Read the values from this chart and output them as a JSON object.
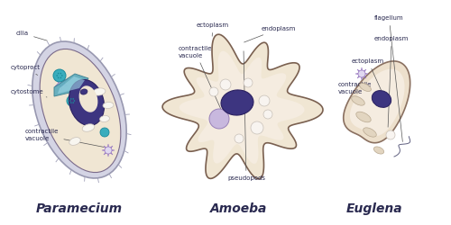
{
  "background_color": "#ffffff",
  "body_fill": "#f0e6d3",
  "body_edge": "#7a6a8a",
  "outer_fill": "#d8d8e8",
  "outer_edge": "#a0a0b8",
  "nucleus_fill": "#3d3580",
  "nucleus_edge": "#2a2060",
  "vacuole_purple_fill": "#b8a8d8",
  "vacuole_purple_edge": "#8878b8",
  "teal_fill": "#3aadbd",
  "teal_edge": "#1a8a9a",
  "star_fill": "#c8b8e0",
  "star_edge": "#9880c0",
  "white_vac_fill": "#f8f6f0",
  "white_vac_edge": "#c8c0b8",
  "cytostome_fill": "#5aabbd",
  "cytostome_edge": "#3a8a9a",
  "label_color": "#2a2a50",
  "names": [
    "Paramecium",
    "Amoeba",
    "Euglena"
  ],
  "name_fontsize": 10,
  "label_fontsize": 5.0,
  "line_color": "#555555",
  "amoeba_fill": "#f0e6d3",
  "amoeba_edge": "#7a6050",
  "euglena_fill": "#ede0cc",
  "euglena_edge": "#8a7060"
}
